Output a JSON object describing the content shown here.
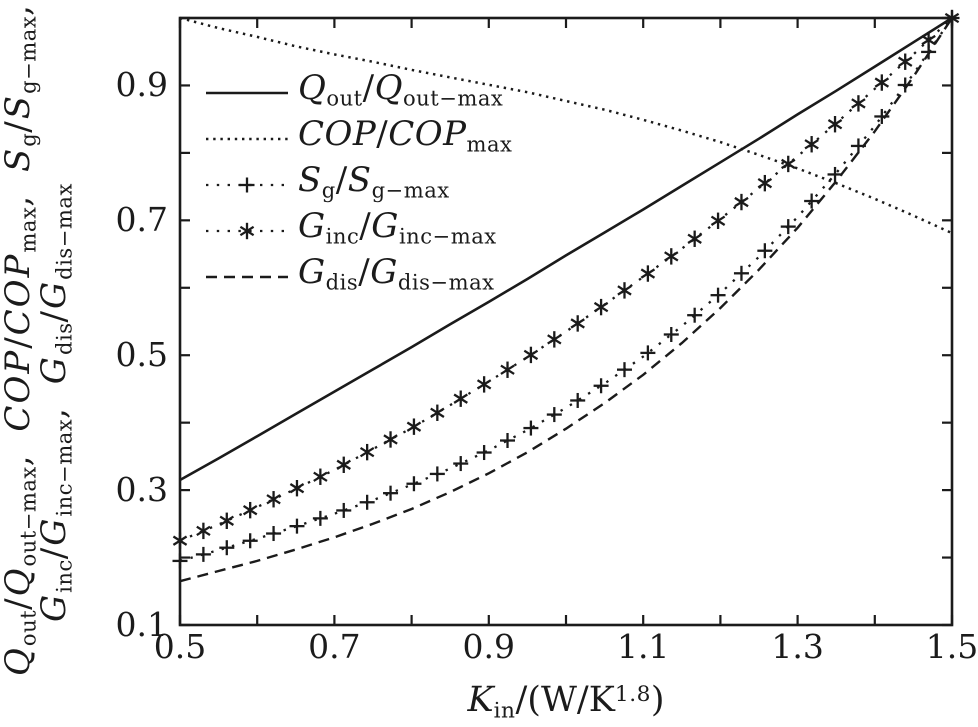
{
  "figure": {
    "bg": "#ffffff",
    "ink": "#1b1b1b"
  },
  "axes": {
    "xlabel": "[K]_{in}/(W/K^{1.8})",
    "ylabel_line1": "[Q]_{out}/[Q]_{out−max}, [COP]/[COP]_{max}, [S]_{g}/[S]_{g−max},",
    "ylabel_line2": "[G]_{inc}/[G]_{inc−max}, [G]_{dis}/[G]_{dis−max}",
    "xlim": [
      0.5,
      1.5
    ],
    "ylim": [
      0.1,
      1.0
    ],
    "xticks": [
      {
        "v": 0.5,
        "label": "0.5"
      },
      {
        "v": 0.6
      },
      {
        "v": 0.7,
        "label": "0.7"
      },
      {
        "v": 0.8
      },
      {
        "v": 0.9,
        "label": "0.9"
      },
      {
        "v": 1.0
      },
      {
        "v": 1.1,
        "label": "1.1"
      },
      {
        "v": 1.2
      },
      {
        "v": 1.3,
        "label": "1.3"
      },
      {
        "v": 1.4
      },
      {
        "v": 1.5,
        "label": "1.5"
      }
    ],
    "yticks": [
      {
        "v": 0.1,
        "label": "0.1"
      },
      {
        "v": 0.2
      },
      {
        "v": 0.3,
        "label": "0.3"
      },
      {
        "v": 0.4
      },
      {
        "v": 0.5,
        "label": "0.5"
      },
      {
        "v": 0.6
      },
      {
        "v": 0.7,
        "label": "0.7"
      },
      {
        "v": 0.8
      },
      {
        "v": 0.9,
        "label": "0.9"
      },
      {
        "v": 1.0
      }
    ]
  },
  "chart_data": {
    "type": "line",
    "title": "",
    "xlabel": "K_in/(W/K^1.8)",
    "ylabel": "Q_out/Q_out-max, COP/COP_max, S_g/S_g-max, G_inc/G_inc-max, G_dis/G_dis-max",
    "xlim": [
      0.5,
      1.5
    ],
    "ylim": [
      0.1,
      1.0
    ],
    "grid": false,
    "legend_position": "upper left inside, no frame",
    "marker_step": 0.0303,
    "x": [
      0.5,
      0.55,
      0.6,
      0.65,
      0.7,
      0.75,
      0.8,
      0.85,
      0.9,
      0.95,
      1.0,
      1.05,
      1.1,
      1.15,
      1.2,
      1.25,
      1.3,
      1.35,
      1.4,
      1.45,
      1.5
    ],
    "series": [
      {
        "name": "Q_out/Q_out-max",
        "legend": "[Q]_{out}/[Q]_{out−max}",
        "line": "solid",
        "marker": "none",
        "values": [
          0.315,
          0.347,
          0.38,
          0.413,
          0.446,
          0.479,
          0.512,
          0.546,
          0.579,
          0.613,
          0.648,
          0.682,
          0.716,
          0.751,
          0.786,
          0.821,
          0.857,
          0.892,
          0.928,
          0.964,
          1.0
        ]
      },
      {
        "name": "COP/COP-max",
        "legend": "[COP]/[COP]_{max}",
        "line": "dotted",
        "marker": "none",
        "values": [
          1.0,
          0.985,
          0.972,
          0.958,
          0.946,
          0.935,
          0.923,
          0.912,
          0.901,
          0.89,
          0.877,
          0.864,
          0.849,
          0.833,
          0.816,
          0.797,
          0.777,
          0.755,
          0.732,
          0.707,
          0.681
        ]
      },
      {
        "name": "S_g/S_g-max",
        "legend": "[S]_{g}/[S]_{g−max}",
        "line": "sparse-dotted",
        "marker": "plus",
        "values": [
          0.195,
          0.211,
          0.228,
          0.246,
          0.265,
          0.285,
          0.308,
          0.332,
          0.359,
          0.389,
          0.422,
          0.458,
          0.498,
          0.543,
          0.592,
          0.646,
          0.705,
          0.77,
          0.84,
          0.917,
          1.0
        ]
      },
      {
        "name": "G_inc/G_inc-max",
        "legend": "[G]_{inc}/[G]_{inc−max}",
        "line": "sparse-dotted",
        "marker": "asterisk",
        "values": [
          0.225,
          0.249,
          0.275,
          0.302,
          0.33,
          0.361,
          0.392,
          0.426,
          0.461,
          0.497,
          0.535,
          0.575,
          0.616,
          0.658,
          0.702,
          0.748,
          0.795,
          0.844,
          0.895,
          0.946,
          1.0
        ]
      },
      {
        "name": "G_dis/G_dis-max",
        "legend": "[G]_{dis}/[G]_{dis−max}",
        "line": "dashed",
        "marker": "none",
        "values": [
          0.165,
          0.18,
          0.195,
          0.212,
          0.23,
          0.25,
          0.272,
          0.297,
          0.325,
          0.356,
          0.391,
          0.429,
          0.471,
          0.518,
          0.57,
          0.627,
          0.689,
          0.758,
          0.832,
          0.913,
          1.0
        ]
      }
    ]
  }
}
